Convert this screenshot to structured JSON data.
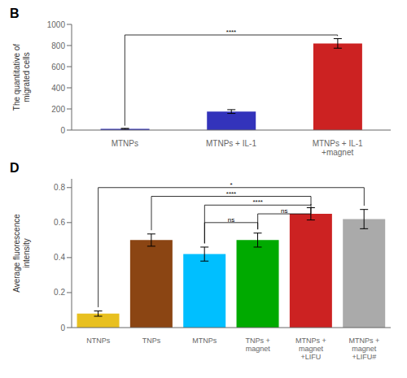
{
  "chart_data": [
    {
      "type": "bar",
      "title": "B",
      "categories": [
        "MTNPs",
        "MTNPs + IL-1",
        "MTNPs + IL-1\n+magnet"
      ],
      "values": [
        12,
        175,
        820
      ],
      "errors": [
        4,
        18,
        45
      ],
      "colors": [
        "#3333bb",
        "#3333bb",
        "#cc2222"
      ],
      "ylabel": "The quantitative of\nmigrated cells",
      "ylim": [
        0,
        1000
      ],
      "yticks": [
        0,
        200,
        400,
        600,
        800,
        1000
      ],
      "annotations": [
        {
          "x1": 0,
          "x2": 2,
          "y": 900,
          "label": "****"
        }
      ]
    },
    {
      "type": "bar",
      "title": "D",
      "categories": [
        "NTNPs",
        "TNPs",
        "MTNPs",
        "TNPs +\nmagnet",
        "MTNPs +\nmagnet\n+LIFU",
        "MTNPs +\nmagnet\n+LIFU#"
      ],
      "values": [
        0.08,
        0.5,
        0.42,
        0.5,
        0.65,
        0.62
      ],
      "errors": [
        0.015,
        0.035,
        0.04,
        0.04,
        0.035,
        0.055
      ],
      "colors": [
        "#e8c020",
        "#8B4513",
        "#00bfff",
        "#00aa00",
        "#cc2222",
        "#aaaaaa"
      ],
      "ylabel": "Average fluorescence\nintensity",
      "ylim": [
        0,
        0.85
      ],
      "yticks": [
        0,
        0.2,
        0.4,
        0.6,
        0.8
      ],
      "annotations": [
        {
          "x1": 0,
          "x2": 5,
          "y": 0.8,
          "label": "*"
        },
        {
          "x1": 1,
          "x2": 4,
          "y": 0.75,
          "label": "****"
        },
        {
          "x1": 2,
          "x2": 4,
          "y": 0.7,
          "label": "****"
        },
        {
          "x1": 3,
          "x2": 4,
          "y": 0.65,
          "label": "ns"
        },
        {
          "x1": 2,
          "x2": 3,
          "y": 0.6,
          "label": "ns"
        }
      ]
    }
  ]
}
